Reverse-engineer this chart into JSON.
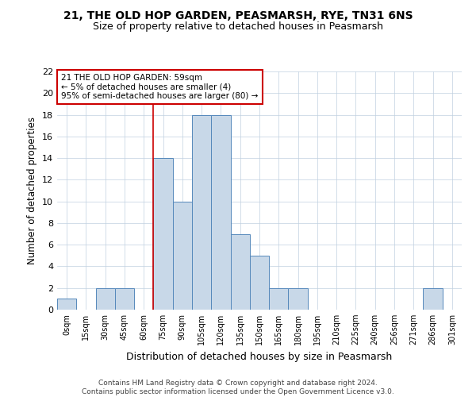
{
  "title": "21, THE OLD HOP GARDEN, PEASMARSH, RYE, TN31 6NS",
  "subtitle": "Size of property relative to detached houses in Peasmarsh",
  "xlabel": "Distribution of detached houses by size in Peasmarsh",
  "ylabel": "Number of detached properties",
  "bar_labels": [
    "0sqm",
    "15sqm",
    "30sqm",
    "45sqm",
    "60sqm",
    "75sqm",
    "90sqm",
    "105sqm",
    "120sqm",
    "135sqm",
    "150sqm",
    "165sqm",
    "180sqm",
    "195sqm",
    "210sqm",
    "225sqm",
    "240sqm",
    "256sqm",
    "271sqm",
    "286sqm",
    "301sqm"
  ],
  "bar_values": [
    1,
    0,
    2,
    2,
    0,
    14,
    10,
    18,
    18,
    7,
    5,
    2,
    2,
    0,
    0,
    0,
    0,
    0,
    0,
    2,
    0
  ],
  "bar_color": "#c8d8e8",
  "bar_edge_color": "#5588bb",
  "ylim": [
    0,
    22
  ],
  "yticks": [
    0,
    2,
    4,
    6,
    8,
    10,
    12,
    14,
    16,
    18,
    20,
    22
  ],
  "property_line_x": 4.5,
  "annotation_text": "21 THE OLD HOP GARDEN: 59sqm\n← 5% of detached houses are smaller (4)\n95% of semi-detached houses are larger (80) →",
  "annotation_box_color": "#ffffff",
  "annotation_box_edge": "#cc0000",
  "footnote1": "Contains HM Land Registry data © Crown copyright and database right 2024.",
  "footnote2": "Contains public sector information licensed under the Open Government Licence v3.0.",
  "bg_color": "#ffffff",
  "grid_color": "#c0d0e0",
  "title_fontsize": 10,
  "subtitle_fontsize": 9
}
